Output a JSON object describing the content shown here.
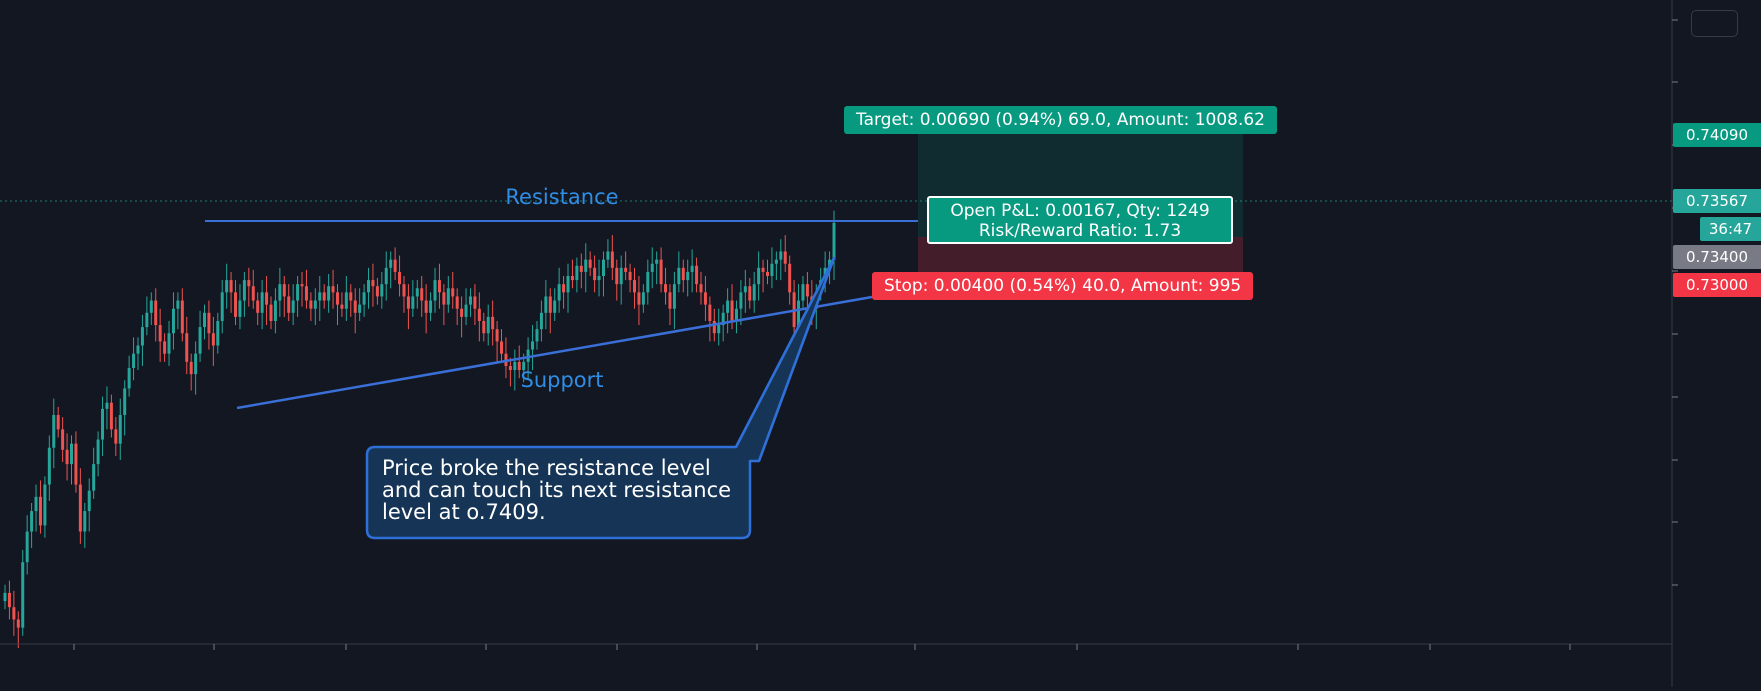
{
  "colors": {
    "background": "#131722",
    "up": "#26a69a",
    "down": "#ef5350",
    "trendline": "#3a6fd8",
    "label_blue": "#2f8de4",
    "target_green": "#089981",
    "stop_red": "#f23645",
    "entry_gray": "#787b86",
    "callout_fill": "#163556",
    "callout_border": "#2f6fd8"
  },
  "chart_data": {
    "type": "candlestick",
    "ylim": [
      0.715,
      0.7465
    ],
    "x_ticks_count": 12,
    "resistance": 0.7343,
    "support_line": [
      [
        0.7175,
        0.7322
      ]
    ],
    "current_price": 0.73567,
    "position": {
      "entry": 0.734,
      "target": 0.7409,
      "stop": 0.73,
      "target_label": "Target: 0.00690 (0.94%) 69.0, Amount: 1008.62",
      "stop_label": "Stop: 0.00400 (0.54%) 40.0, Amount: 995",
      "pnl_label": "Open P&L: 0.00167, Qty: 1249",
      "rr_label": "Risk/Reward Ratio: 1.73"
    },
    "annotations": {
      "resistance": "Resistance",
      "support": "Support"
    },
    "closes": [
      0.7175,
      0.7168,
      0.7162,
      0.7158,
      0.719,
      0.7205,
      0.7215,
      0.7222,
      0.7208,
      0.7228,
      0.7246,
      0.7262,
      0.7255,
      0.7245,
      0.7238,
      0.7248,
      0.7228,
      0.7205,
      0.7215,
      0.7225,
      0.7238,
      0.725,
      0.7265,
      0.7268,
      0.7255,
      0.7248,
      0.7262,
      0.7275,
      0.7285,
      0.7292,
      0.7296,
      0.7305,
      0.7312,
      0.7318,
      0.7306,
      0.7298,
      0.7292,
      0.7302,
      0.7314,
      0.7318,
      0.7302,
      0.7288,
      0.7282,
      0.7292,
      0.7305,
      0.7312,
      0.7302,
      0.7296,
      0.7308,
      0.7322,
      0.7328,
      0.7322,
      0.731,
      0.7318,
      0.7328,
      0.7325,
      0.7318,
      0.7312,
      0.7322,
      0.7316,
      0.7308,
      0.7318,
      0.7326,
      0.732,
      0.7312,
      0.7318,
      0.7326,
      0.7325,
      0.7318,
      0.7314,
      0.7318,
      0.7322,
      0.7318,
      0.7325,
      0.7322,
      0.7316,
      0.7314,
      0.7322,
      0.7318,
      0.7312,
      0.7316,
      0.7322,
      0.7328,
      0.7325,
      0.732,
      0.7326,
      0.7334,
      0.7338,
      0.7332,
      0.7326,
      0.732,
      0.7314,
      0.732,
      0.7324,
      0.7318,
      0.7312,
      0.7318,
      0.7328,
      0.7322,
      0.7316,
      0.7324,
      0.732,
      0.7314,
      0.731,
      0.7316,
      0.732,
      0.7314,
      0.7308,
      0.7302,
      0.731,
      0.7304,
      0.7298,
      0.7292,
      0.7286,
      0.7284,
      0.7288,
      0.7284,
      0.7288,
      0.7294,
      0.7298,
      0.7304,
      0.7312,
      0.732,
      0.7312,
      0.7318,
      0.7326,
      0.7322,
      0.733,
      0.7328,
      0.7335,
      0.7332,
      0.7338,
      0.7334,
      0.7328,
      0.733,
      0.7338,
      0.7342,
      0.7334,
      0.7326,
      0.7334,
      0.7332,
      0.7328,
      0.7322,
      0.7316,
      0.7322,
      0.7332,
      0.7336,
      0.7338,
      0.7326,
      0.7322,
      0.7314,
      0.7326,
      0.7334,
      0.7328,
      0.7332,
      0.7335,
      0.7326,
      0.7322,
      0.7316,
      0.7308,
      0.7302,
      0.7306,
      0.7312,
      0.7318,
      0.7308,
      0.7314,
      0.7322,
      0.7325,
      0.7318,
      0.7326,
      0.7334,
      0.7332,
      0.733,
      0.7336,
      0.7338,
      0.7342,
      0.7336,
      0.7322,
      0.7305,
      0.7318,
      0.7326,
      0.732,
      0.7314,
      0.7322,
      0.7328,
      0.7334,
      0.7338,
      0.7356
    ]
  }
}
